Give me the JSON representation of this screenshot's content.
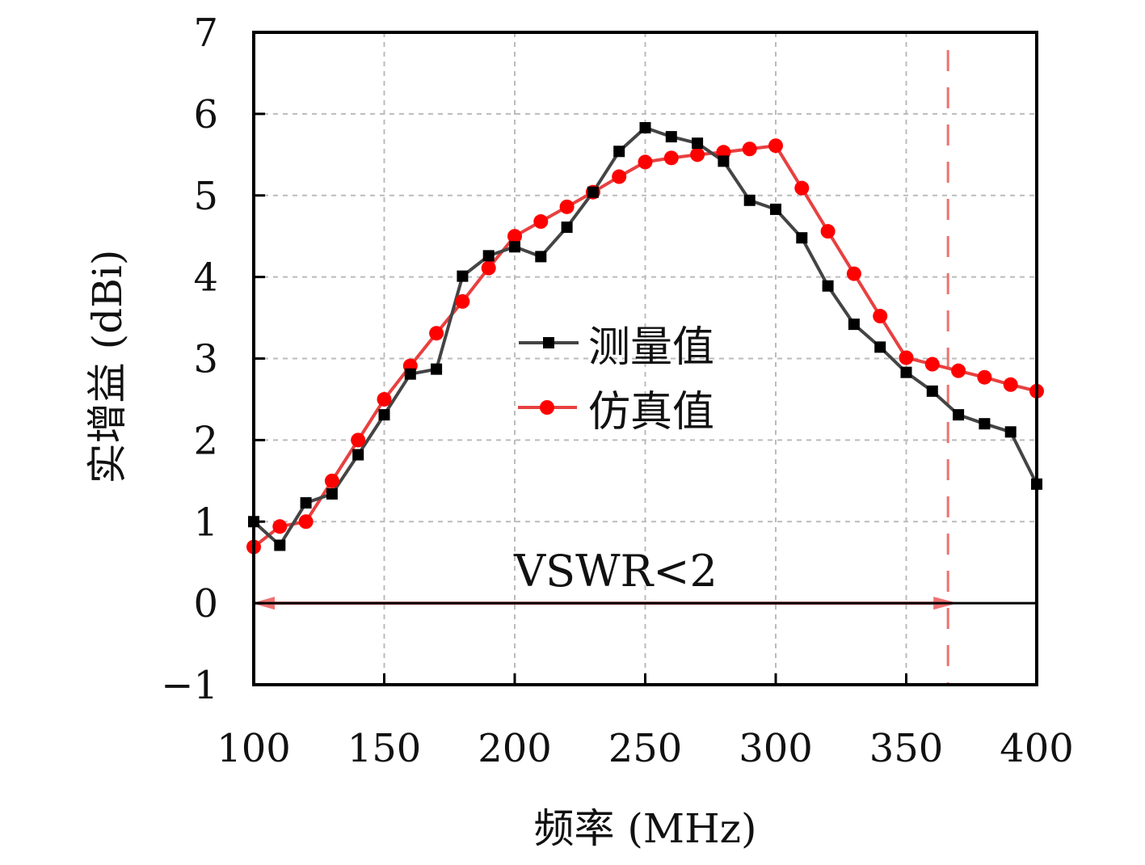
{
  "chart_data": {
    "type": "line",
    "title": "",
    "xlabel": "频率 (MHz)",
    "ylabel": "实增益 (dBi)",
    "xlim": [
      100,
      400
    ],
    "ylim": [
      -1,
      7
    ],
    "xticks": [
      100,
      150,
      200,
      250,
      300,
      350,
      400
    ],
    "yticks": [
      -1,
      0,
      1,
      2,
      3,
      4,
      5,
      6,
      7
    ],
    "xtick_labels": [
      "100",
      "150",
      "200",
      "250",
      "300",
      "350",
      "400"
    ],
    "ytick_labels": [
      "−1",
      "0",
      "1",
      "2",
      "3",
      "4",
      "5",
      "6",
      "7"
    ],
    "grid": true,
    "legend_position": "center",
    "x": [
      100,
      110,
      120,
      130,
      140,
      150,
      160,
      170,
      180,
      190,
      200,
      210,
      220,
      230,
      240,
      250,
      260,
      270,
      280,
      290,
      300,
      310,
      320,
      330,
      340,
      350,
      360,
      370,
      380,
      390,
      400
    ],
    "series": [
      {
        "name": "测量值",
        "color": "#000000",
        "line_color": "#444444",
        "marker": "square",
        "values": [
          1.0,
          0.71,
          1.23,
          1.34,
          1.82,
          2.31,
          2.81,
          2.87,
          4.01,
          4.26,
          4.37,
          4.25,
          4.61,
          5.04,
          5.54,
          5.83,
          5.72,
          5.64,
          5.42,
          4.94,
          4.83,
          4.48,
          3.89,
          3.42,
          3.14,
          2.83,
          2.6,
          2.31,
          2.2,
          2.1,
          1.46
        ]
      },
      {
        "name": "仿真值",
        "color": "#ff0000",
        "line_color": "#e84040",
        "marker": "circle",
        "values": [
          0.69,
          0.94,
          1.0,
          1.5,
          2.0,
          2.5,
          2.91,
          3.31,
          3.7,
          4.11,
          4.5,
          4.68,
          4.86,
          5.04,
          5.23,
          5.41,
          5.46,
          5.5,
          5.53,
          5.57,
          5.61,
          5.09,
          4.56,
          4.04,
          3.52,
          3.01,
          2.93,
          2.85,
          2.77,
          2.68,
          2.6
        ]
      }
    ],
    "annotations": [
      {
        "type": "text",
        "text": "VSWR<2"
      },
      {
        "type": "vline",
        "x": 366,
        "style": "dashed",
        "color": "#f07070"
      },
      {
        "type": "arrow",
        "x_from": 100,
        "x_to": 366,
        "y": 0,
        "color": "#f07070",
        "bidirectional": true
      },
      {
        "type": "hline",
        "y": 0,
        "color": "#000000"
      }
    ]
  }
}
